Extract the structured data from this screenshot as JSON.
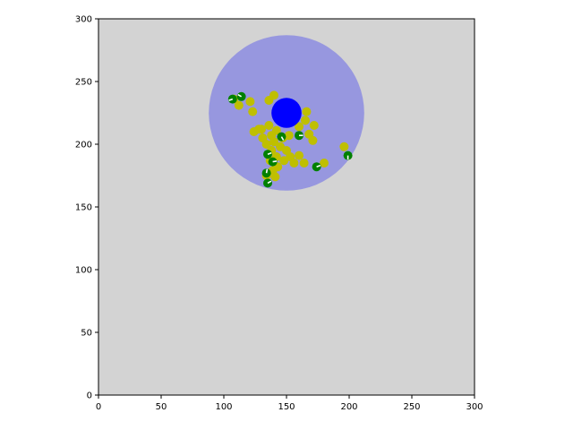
{
  "chart_data": {
    "type": "scatter",
    "title": "",
    "xlabel": "",
    "ylabel": "",
    "xlim": [
      0,
      300
    ],
    "ylim": [
      0,
      300
    ],
    "xticks": [
      "0",
      "50",
      "100",
      "150",
      "200",
      "250",
      "300"
    ],
    "yticks": [
      "0",
      "50",
      "100",
      "150",
      "200",
      "250",
      "300"
    ],
    "grid": false,
    "colors": {
      "background": "#d3d3d3",
      "range_circle": "#9797df",
      "center": "#0000ff",
      "yellow_points": "#bfbf00",
      "green_markers": "#008000",
      "marker_heading": "#ffffff"
    },
    "range_circle": {
      "cx": 150,
      "cy": 225,
      "r": 62
    },
    "center_point": {
      "x": 150,
      "y": 225,
      "r": 12
    },
    "yellow_points": [
      [
        140,
        239
      ],
      [
        136,
        235
      ],
      [
        121,
        234
      ],
      [
        123,
        226
      ],
      [
        112,
        231
      ],
      [
        108,
        236
      ],
      [
        166,
        226
      ],
      [
        165,
        219
      ],
      [
        172,
        215
      ],
      [
        160,
        214
      ],
      [
        168,
        208
      ],
      [
        171,
        203
      ],
      [
        124,
        210
      ],
      [
        130,
        212
      ],
      [
        136,
        215
      ],
      [
        142,
        211
      ],
      [
        138,
        207
      ],
      [
        131,
        205
      ],
      [
        134,
        200
      ],
      [
        140,
        202
      ],
      [
        147,
        205
      ],
      [
        152,
        207
      ],
      [
        145,
        198
      ],
      [
        150,
        195
      ],
      [
        138,
        195
      ],
      [
        142,
        190
      ],
      [
        148,
        187
      ],
      [
        153,
        190
      ],
      [
        160,
        191
      ],
      [
        156,
        185
      ],
      [
        164,
        185
      ],
      [
        180,
        185
      ],
      [
        143,
        182
      ],
      [
        139,
        179
      ],
      [
        141,
        174
      ],
      [
        134,
        175
      ],
      [
        196,
        198
      ],
      [
        137,
        187
      ],
      [
        128,
        212
      ]
    ],
    "green_markers": [
      {
        "x": 107,
        "y": 236,
        "heading": 200
      },
      {
        "x": 114,
        "y": 238,
        "heading": 150
      },
      {
        "x": 146,
        "y": 206,
        "heading": 300
      },
      {
        "x": 160,
        "y": 207,
        "heading": 0
      },
      {
        "x": 135,
        "y": 192,
        "heading": 20
      },
      {
        "x": 139,
        "y": 186,
        "heading": 10
      },
      {
        "x": 134,
        "y": 177,
        "heading": 80
      },
      {
        "x": 135,
        "y": 169,
        "heading": 30
      },
      {
        "x": 174,
        "y": 182,
        "heading": 20
      },
      {
        "x": 199,
        "y": 191,
        "heading": 270
      }
    ]
  }
}
